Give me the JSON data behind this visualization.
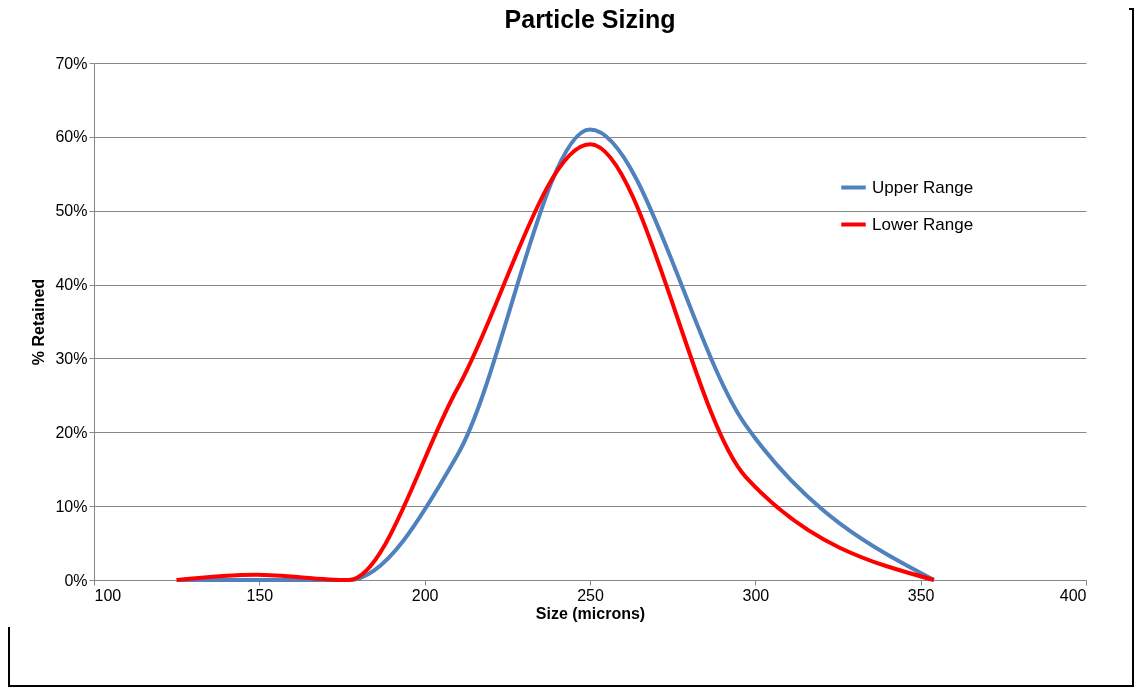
{
  "chart_data": {
    "type": "line",
    "title": "Particle Sizing",
    "xlabel": "Size (microns)",
    "ylabel": "% Retained",
    "series": [
      {
        "name": "Upper Range",
        "color": "#4f81bd",
        "x": [
          125,
          149,
          177,
          210,
          250,
          297,
          354
        ],
        "values": [
          0,
          0,
          0,
          17,
          61,
          21,
          0
        ]
      },
      {
        "name": "Lower Range",
        "color": "#ff0000",
        "x": [
          125,
          149,
          177,
          210,
          250,
          297,
          354
        ],
        "values": [
          0,
          0.7,
          0,
          26,
          59,
          14,
          0
        ]
      }
    ],
    "xlim": [
      100,
      400
    ],
    "xticks": [
      100,
      150,
      200,
      250,
      300,
      350,
      400
    ],
    "ylim": [
      0,
      70
    ],
    "yticks": [
      {
        "value": 0,
        "label": "0%"
      },
      {
        "value": 10,
        "label": "10%"
      },
      {
        "value": 20,
        "label": "20%"
      },
      {
        "value": 30,
        "label": "30%"
      },
      {
        "value": 40,
        "label": "40%"
      },
      {
        "value": 50,
        "label": "50%"
      },
      {
        "value": 60,
        "label": "60%"
      },
      {
        "value": 70,
        "label": "70%"
      }
    ],
    "grid": "y",
    "legend": "top right",
    "marker": "none",
    "line_style": "solid"
  }
}
